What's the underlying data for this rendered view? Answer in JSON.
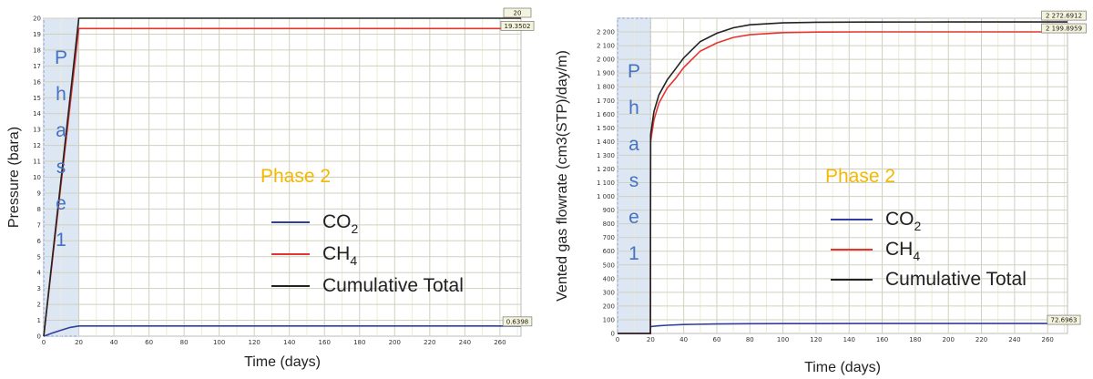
{
  "colors": {
    "co2": "#2f3f9f",
    "ch4": "#e8342e",
    "total": "#222222",
    "phase1_fill": "#dde7f4",
    "phase1_text": "#4472c4",
    "phase2_text": "#f5b700",
    "grid_minor": "#ececd8",
    "grid_major": "#d0d0c0",
    "label_box": "#f4f4dc"
  },
  "charts": [
    {
      "id": "left",
      "ylabel": "Pressure (bara)",
      "xlabel": "Time (days)",
      "phase1_label": [
        "P",
        "h",
        "a",
        "s",
        "e",
        "1"
      ],
      "phase2_label": "Phase 2",
      "legend": [
        {
          "key": "co2",
          "text": "CO",
          "sub": "2"
        },
        {
          "key": "ch4",
          "text": "CH",
          "sub": "4"
        },
        {
          "key": "total",
          "text": "Cumulative Total",
          "sub": ""
        }
      ],
      "end_labels": {
        "total": "20",
        "ch4": "19.3502",
        "co2": "0.6398"
      }
    },
    {
      "id": "right",
      "ylabel": "Vented gas flowrate (cm3(STP)/day/m)",
      "xlabel": "Time (days)",
      "phase1_label": [
        "P",
        "h",
        "a",
        "s",
        "e",
        "1"
      ],
      "phase2_label": "Phase 2",
      "legend": [
        {
          "key": "co2",
          "text": "CO",
          "sub": "2"
        },
        {
          "key": "ch4",
          "text": "CH",
          "sub": "4"
        },
        {
          "key": "total",
          "text": "Cumulative Total",
          "sub": ""
        }
      ],
      "end_labels": {
        "total": "2 272.6912",
        "ch4": "2 199.8959",
        "co2": "72.6963"
      }
    }
  ],
  "chart_data": [
    {
      "type": "line",
      "xlabel": "Time (days)",
      "ylabel": "Pressure (bara)",
      "xlim": [
        0,
        272
      ],
      "ylim": [
        0,
        20
      ],
      "xticks": [
        0,
        20,
        40,
        60,
        80,
        100,
        120,
        140,
        160,
        180,
        200,
        220,
        240,
        260
      ],
      "yticks": [
        0,
        1,
        2,
        3,
        4,
        5,
        6,
        7,
        8,
        9,
        10,
        11,
        12,
        13,
        14,
        15,
        16,
        17,
        18,
        19,
        20
      ],
      "phase1_range": [
        0,
        20
      ],
      "series": [
        {
          "name": "CO2",
          "key": "co2",
          "x": [
            0,
            2,
            5,
            10,
            15,
            20,
            100,
            200,
            272
          ],
          "y": [
            0,
            0.08,
            0.2,
            0.38,
            0.55,
            0.64,
            0.64,
            0.64,
            0.64
          ]
        },
        {
          "name": "CH4",
          "key": "ch4",
          "x": [
            0,
            5,
            10,
            15,
            20,
            100,
            200,
            272
          ],
          "y": [
            0,
            4.8,
            9.7,
            14.5,
            19.35,
            19.35,
            19.35,
            19.35
          ]
        },
        {
          "name": "Cumulative Total",
          "key": "total",
          "x": [
            0,
            5,
            10,
            15,
            20,
            100,
            200,
            272
          ],
          "y": [
            0,
            5,
            10,
            15,
            20,
            20,
            20,
            20
          ]
        }
      ]
    },
    {
      "type": "line",
      "xlabel": "Time (days)",
      "ylabel": "Vented gas flowrate (cm3(STP)/day/m)",
      "xlim": [
        0,
        272
      ],
      "ylim": [
        0,
        2300
      ],
      "xticks": [
        0,
        20,
        40,
        60,
        80,
        100,
        120,
        140,
        160,
        180,
        200,
        220,
        240,
        260
      ],
      "yticks": [
        0,
        100,
        200,
        300,
        400,
        500,
        600,
        700,
        800,
        900,
        1000,
        1100,
        1200,
        1300,
        1400,
        1500,
        1600,
        1700,
        1800,
        1900,
        2000,
        2100,
        2200
      ],
      "phase1_range": [
        0,
        20
      ],
      "series": [
        {
          "name": "CO2",
          "key": "co2",
          "x": [
            0,
            19.9,
            20,
            25,
            30,
            40,
            60,
            80,
            100,
            150,
            200,
            272
          ],
          "y": [
            0,
            0,
            50,
            56,
            60,
            65,
            69,
            71,
            72,
            72.5,
            72.7,
            72.7
          ]
        },
        {
          "name": "CH4",
          "key": "ch4",
          "x": [
            0,
            19.9,
            20,
            22,
            25,
            30,
            35,
            40,
            50,
            60,
            70,
            80,
            100,
            120,
            150,
            200,
            272
          ],
          "y": [
            0,
            0,
            1400,
            1560,
            1680,
            1790,
            1860,
            1940,
            2060,
            2120,
            2160,
            2180,
            2195,
            2199,
            2200,
            2200,
            2200
          ]
        },
        {
          "name": "Cumulative Total",
          "key": "total",
          "x": [
            0,
            19.9,
            20,
            22,
            25,
            30,
            35,
            40,
            50,
            60,
            70,
            80,
            100,
            120,
            150,
            200,
            272
          ],
          "y": [
            0,
            0,
            1450,
            1620,
            1740,
            1850,
            1930,
            2010,
            2130,
            2190,
            2230,
            2252,
            2266,
            2271,
            2272,
            2272.7,
            2272.7
          ]
        }
      ]
    }
  ]
}
